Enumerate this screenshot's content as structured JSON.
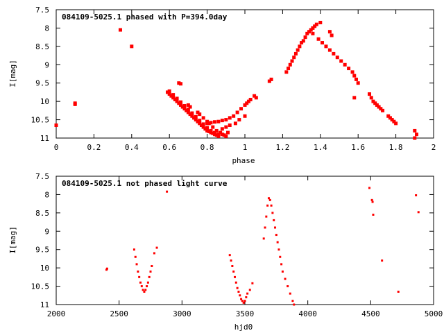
{
  "chart_data": [
    {
      "type": "scatter",
      "title": "084109-5025.1 phased with P=394.0day",
      "xlabel": "phase",
      "ylabel": "I[mag]",
      "xlim": [
        0,
        2
      ],
      "ylim": [
        7.5,
        11
      ],
      "y_inverted": true,
      "grid": false,
      "legend": "none",
      "xticks": [
        "0",
        "0.2",
        "0.4",
        "0.6",
        "0.8",
        "1",
        "1.2",
        "1.4",
        "1.6",
        "1.8",
        "2"
      ],
      "yticks": [
        "7.5",
        "8",
        "8.5",
        "9",
        "9.5",
        "10",
        "10.5",
        "11"
      ],
      "color": "#ff0000",
      "series": [
        {
          "x": [
            0.0,
            0.1,
            0.1,
            0.34,
            0.4,
            0.59,
            0.6,
            0.61,
            0.62,
            0.63,
            0.64,
            0.65,
            0.66,
            0.67,
            0.68,
            0.69,
            0.7,
            0.71,
            0.72,
            0.73,
            0.74,
            0.75,
            0.76,
            0.77,
            0.78,
            0.79,
            0.8,
            0.81,
            0.82,
            0.83,
            0.84,
            0.85,
            0.86,
            0.6,
            0.62,
            0.64,
            0.66,
            0.68,
            0.7,
            0.72,
            0.74,
            0.76,
            0.78,
            0.8,
            0.82,
            0.84,
            0.86,
            0.65,
            0.66,
            0.7,
            0.71,
            0.75,
            0.76,
            0.78,
            0.8,
            0.81,
            0.83,
            0.85,
            0.87,
            0.88,
            0.89,
            0.9,
            0.91,
            0.8,
            0.82,
            0.84,
            0.86,
            0.88,
            0.9,
            0.92,
            0.94,
            0.96,
            0.98,
            1.0,
            1.01,
            1.02,
            1.03,
            0.88,
            0.9,
            0.92,
            0.95,
            0.97,
            1.0,
            1.05,
            1.06,
            1.13,
            1.14,
            1.22,
            1.23,
            1.24,
            1.25,
            1.26,
            1.27,
            1.28,
            1.29,
            1.3,
            1.31,
            1.32,
            1.33,
            1.34,
            1.35,
            1.36,
            1.37,
            1.38,
            1.4,
            1.36,
            1.45,
            1.46,
            1.39,
            1.41,
            1.43,
            1.45,
            1.47,
            1.49,
            1.51,
            1.53,
            1.55,
            1.57,
            1.58,
            1.59,
            1.6,
            1.58,
            1.66,
            1.67,
            1.68,
            1.69,
            1.7,
            1.71,
            1.72,
            1.73,
            1.76,
            1.77,
            1.78,
            1.79,
            1.8,
            1.9,
            1.91,
            1.9
          ],
          "y": [
            10.65,
            10.05,
            10.08,
            8.05,
            8.5,
            9.75,
            9.8,
            9.85,
            9.9,
            9.95,
            10.0,
            10.05,
            10.1,
            10.15,
            10.2,
            10.25,
            10.3,
            10.35,
            10.4,
            10.45,
            10.5,
            10.55,
            10.6,
            10.65,
            10.7,
            10.75,
            10.8,
            10.82,
            10.85,
            10.87,
            10.9,
            10.92,
            10.95,
            9.72,
            9.82,
            9.92,
            10.02,
            10.12,
            10.22,
            10.32,
            10.42,
            10.52,
            10.62,
            10.72,
            10.8,
            10.85,
            10.9,
            9.5,
            9.52,
            10.1,
            10.15,
            10.3,
            10.35,
            10.45,
            10.55,
            10.6,
            10.7,
            10.8,
            10.85,
            10.9,
            10.92,
            10.95,
            10.85,
            10.6,
            10.58,
            10.56,
            10.55,
            10.52,
            10.5,
            10.45,
            10.4,
            10.3,
            10.2,
            10.1,
            10.05,
            10.0,
            9.95,
            10.75,
            10.7,
            10.65,
            10.6,
            10.5,
            10.4,
            9.85,
            9.9,
            9.45,
            9.4,
            9.2,
            9.1,
            9.0,
            8.9,
            8.8,
            8.7,
            8.6,
            8.5,
            8.4,
            8.35,
            8.25,
            8.15,
            8.1,
            8.05,
            8.0,
            7.95,
            7.9,
            7.85,
            8.15,
            8.1,
            8.2,
            8.3,
            8.4,
            8.5,
            8.6,
            8.7,
            8.8,
            8.9,
            9.0,
            9.1,
            9.2,
            9.3,
            9.4,
            9.5,
            9.9,
            9.8,
            9.9,
            10.0,
            10.05,
            10.1,
            10.15,
            10.2,
            10.25,
            10.4,
            10.45,
            10.5,
            10.55,
            10.6,
            10.8,
            10.9,
            11.0
          ]
        }
      ]
    },
    {
      "type": "scatter",
      "title": "084109-5025.1 not phased light curve",
      "xlabel": "hjd0",
      "ylabel": "I[mag]",
      "xlim": [
        2000,
        5000
      ],
      "ylim": [
        7.5,
        11
      ],
      "y_inverted": true,
      "grid": false,
      "legend": "none",
      "xticks": [
        "2000",
        "2500",
        "3000",
        "3500",
        "4000",
        "4500",
        "5000"
      ],
      "yticks": [
        "7.5",
        "8",
        "8.5",
        "9",
        "9.5",
        "10",
        "10.5",
        "11"
      ],
      "color": "#ff0000",
      "series": [
        {
          "x": [
            2400,
            2405,
            2880,
            2620,
            2630,
            2640,
            2650,
            2660,
            2670,
            2680,
            2690,
            2700,
            2710,
            2720,
            2730,
            2740,
            2750,
            2760,
            2780,
            2800,
            3380,
            3390,
            3400,
            3410,
            3420,
            3430,
            3440,
            3450,
            3460,
            3470,
            3480,
            3490,
            3500,
            3510,
            3520,
            3540,
            3560,
            3650,
            3660,
            3670,
            3680,
            3690,
            3700,
            3710,
            3720,
            3730,
            3740,
            3750,
            3760,
            3770,
            3780,
            3790,
            3800,
            3820,
            3840,
            3860,
            3880,
            3890,
            4490,
            4510,
            4515,
            4520,
            4590,
            4720,
            4860,
            4880
          ],
          "y": [
            10.05,
            10.02,
            7.92,
            9.5,
            9.7,
            9.9,
            10.1,
            10.25,
            10.4,
            10.5,
            10.6,
            10.65,
            10.6,
            10.5,
            10.4,
            10.25,
            10.1,
            9.95,
            9.6,
            9.45,
            9.65,
            9.8,
            9.95,
            10.1,
            10.25,
            10.4,
            10.55,
            10.65,
            10.75,
            10.85,
            10.9,
            10.95,
            10.9,
            10.8,
            10.7,
            10.6,
            10.42,
            9.2,
            8.9,
            8.6,
            8.3,
            8.1,
            8.15,
            8.3,
            8.5,
            8.7,
            8.9,
            9.1,
            9.3,
            9.5,
            9.7,
            9.9,
            10.1,
            10.3,
            10.5,
            10.7,
            10.9,
            11.0,
            7.82,
            8.15,
            8.2,
            8.55,
            9.8,
            10.65,
            8.02,
            8.48
          ]
        }
      ]
    }
  ]
}
